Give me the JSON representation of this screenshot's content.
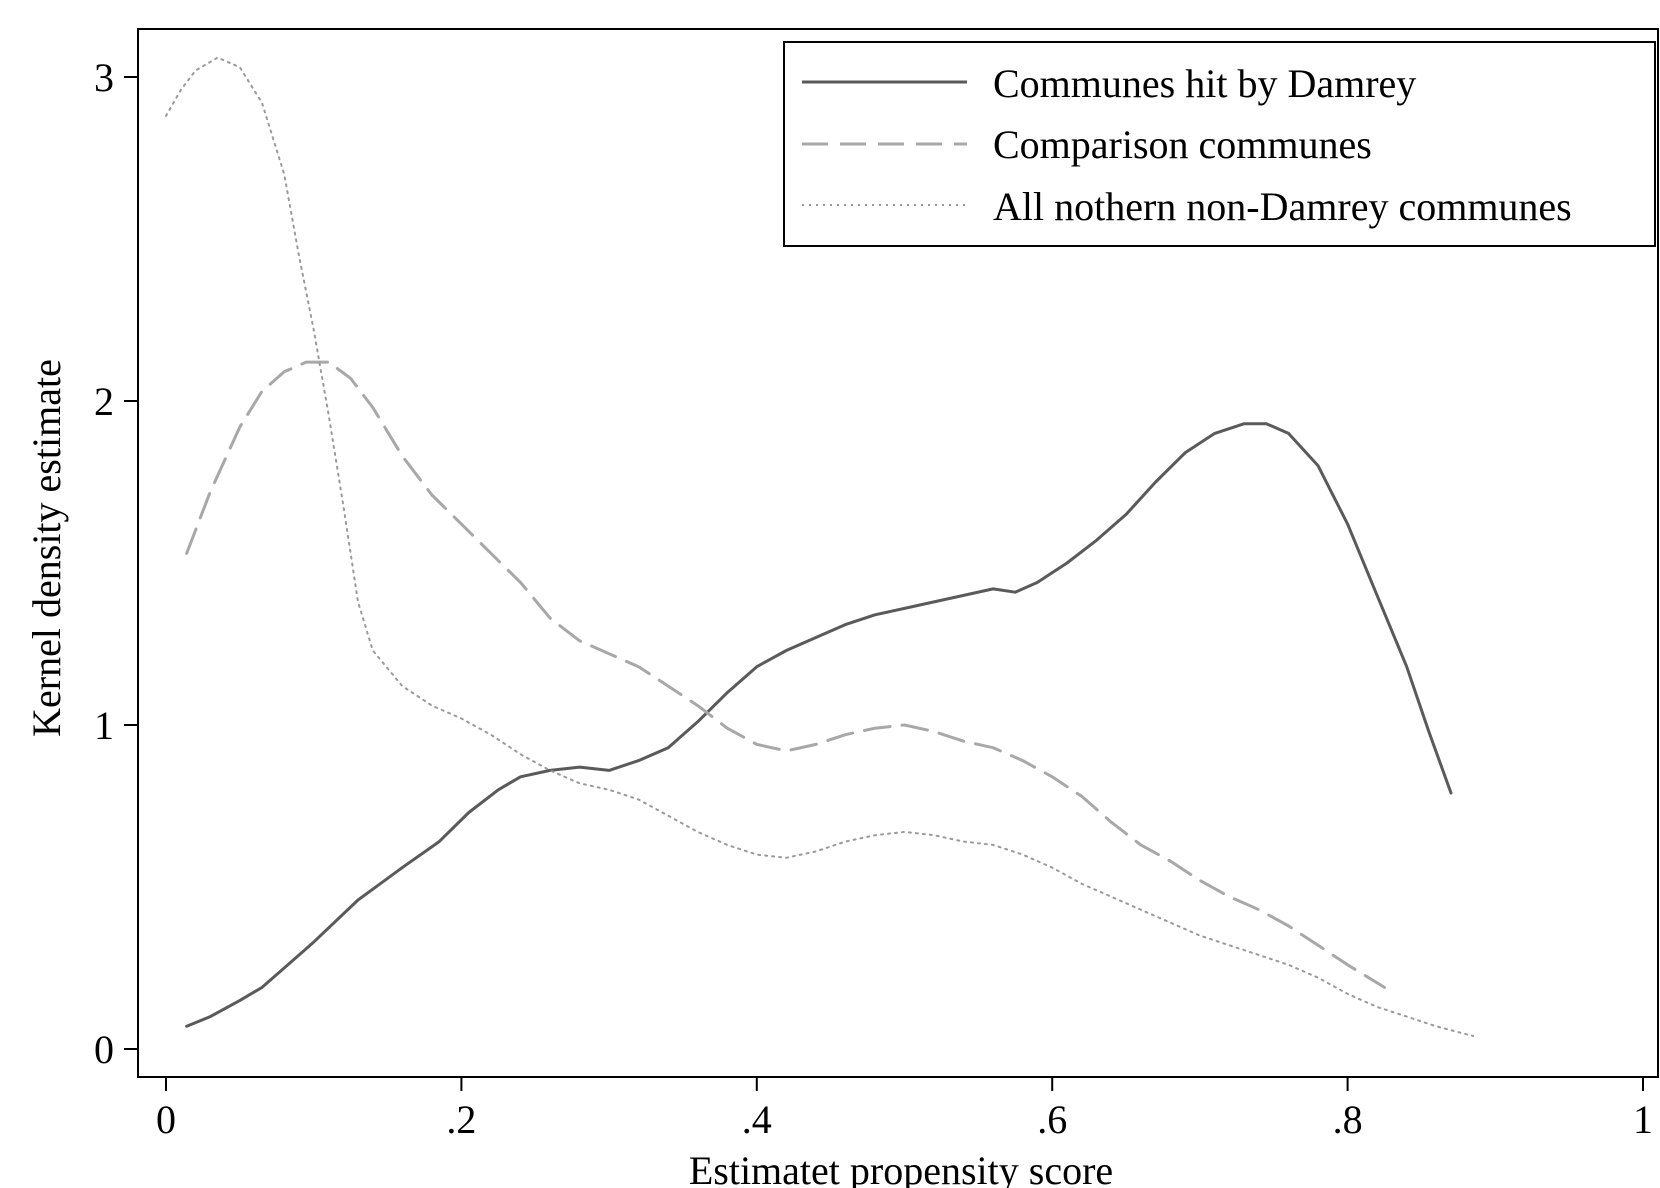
{
  "chart_data": {
    "type": "line",
    "xlabel": "Estimatet propensity score",
    "ylabel": "Kernel density estimate",
    "xlim": [
      0,
      1
    ],
    "ylim": [
      -0.08,
      3.16
    ],
    "x_ticks": [
      {
        "value": 0,
        "label": "0"
      },
      {
        "value": 0.2,
        "label": ".2"
      },
      {
        "value": 0.4,
        "label": ".4"
      },
      {
        "value": 0.6,
        "label": ".6"
      },
      {
        "value": 0.8,
        "label": ".8"
      },
      {
        "value": 1,
        "label": "1"
      }
    ],
    "y_ticks": [
      {
        "value": 0,
        "label": "0"
      },
      {
        "value": 1,
        "label": "1"
      },
      {
        "value": 2,
        "label": "2"
      },
      {
        "value": 3,
        "label": "3"
      }
    ],
    "grid": false,
    "legend_position": "top-right",
    "series": [
      {
        "name": "Communes hit by Damrey",
        "style": "solid",
        "color": "#5a5a5a",
        "points": [
          [
            0.014,
            0.07
          ],
          [
            0.03,
            0.1
          ],
          [
            0.05,
            0.15
          ],
          [
            0.065,
            0.19
          ],
          [
            0.08,
            0.25
          ],
          [
            0.1,
            0.33
          ],
          [
            0.13,
            0.46
          ],
          [
            0.16,
            0.56
          ],
          [
            0.185,
            0.64
          ],
          [
            0.205,
            0.73
          ],
          [
            0.225,
            0.8
          ],
          [
            0.24,
            0.84
          ],
          [
            0.26,
            0.86
          ],
          [
            0.28,
            0.87
          ],
          [
            0.3,
            0.86
          ],
          [
            0.32,
            0.89
          ],
          [
            0.34,
            0.93
          ],
          [
            0.36,
            1.01
          ],
          [
            0.38,
            1.1
          ],
          [
            0.4,
            1.18
          ],
          [
            0.42,
            1.23
          ],
          [
            0.44,
            1.27
          ],
          [
            0.46,
            1.31
          ],
          [
            0.48,
            1.34
          ],
          [
            0.5,
            1.36
          ],
          [
            0.52,
            1.38
          ],
          [
            0.54,
            1.4
          ],
          [
            0.56,
            1.42
          ],
          [
            0.575,
            1.41
          ],
          [
            0.59,
            1.44
          ],
          [
            0.61,
            1.5
          ],
          [
            0.63,
            1.57
          ],
          [
            0.65,
            1.65
          ],
          [
            0.67,
            1.75
          ],
          [
            0.69,
            1.84
          ],
          [
            0.71,
            1.9
          ],
          [
            0.73,
            1.93
          ],
          [
            0.745,
            1.93
          ],
          [
            0.76,
            1.9
          ],
          [
            0.78,
            1.8
          ],
          [
            0.8,
            1.62
          ],
          [
            0.82,
            1.4
          ],
          [
            0.84,
            1.18
          ],
          [
            0.855,
            0.98
          ],
          [
            0.87,
            0.79
          ]
        ]
      },
      {
        "name": "Comparison communes",
        "style": "dashed",
        "color": "#a8a8a8",
        "points": [
          [
            0.014,
            1.53
          ],
          [
            0.03,
            1.72
          ],
          [
            0.05,
            1.92
          ],
          [
            0.065,
            2.03
          ],
          [
            0.08,
            2.09
          ],
          [
            0.095,
            2.12
          ],
          [
            0.11,
            2.12
          ],
          [
            0.125,
            2.07
          ],
          [
            0.14,
            1.98
          ],
          [
            0.16,
            1.83
          ],
          [
            0.18,
            1.71
          ],
          [
            0.2,
            1.62
          ],
          [
            0.22,
            1.53
          ],
          [
            0.24,
            1.44
          ],
          [
            0.26,
            1.33
          ],
          [
            0.28,
            1.26
          ],
          [
            0.3,
            1.22
          ],
          [
            0.32,
            1.18
          ],
          [
            0.34,
            1.12
          ],
          [
            0.36,
            1.06
          ],
          [
            0.38,
            0.99
          ],
          [
            0.4,
            0.94
          ],
          [
            0.42,
            0.92
          ],
          [
            0.44,
            0.94
          ],
          [
            0.46,
            0.97
          ],
          [
            0.48,
            0.99
          ],
          [
            0.5,
            1.0
          ],
          [
            0.52,
            0.98
          ],
          [
            0.54,
            0.95
          ],
          [
            0.56,
            0.93
          ],
          [
            0.58,
            0.89
          ],
          [
            0.6,
            0.84
          ],
          [
            0.62,
            0.78
          ],
          [
            0.64,
            0.7
          ],
          [
            0.66,
            0.63
          ],
          [
            0.68,
            0.58
          ],
          [
            0.7,
            0.52
          ],
          [
            0.72,
            0.47
          ],
          [
            0.74,
            0.43
          ],
          [
            0.76,
            0.38
          ],
          [
            0.78,
            0.32
          ],
          [
            0.8,
            0.26
          ],
          [
            0.825,
            0.19
          ]
        ]
      },
      {
        "name": "All nothern non-Damrey communes",
        "style": "dotted",
        "color": "#9a9a9a",
        "points": [
          [
            0.0,
            2.88
          ],
          [
            0.01,
            2.96
          ],
          [
            0.02,
            3.02
          ],
          [
            0.035,
            3.06
          ],
          [
            0.05,
            3.03
          ],
          [
            0.065,
            2.92
          ],
          [
            0.08,
            2.7
          ],
          [
            0.09,
            2.45
          ],
          [
            0.1,
            2.22
          ],
          [
            0.11,
            1.96
          ],
          [
            0.12,
            1.68
          ],
          [
            0.13,
            1.38
          ],
          [
            0.14,
            1.23
          ],
          [
            0.16,
            1.12
          ],
          [
            0.18,
            1.06
          ],
          [
            0.2,
            1.02
          ],
          [
            0.22,
            0.97
          ],
          [
            0.24,
            0.91
          ],
          [
            0.26,
            0.86
          ],
          [
            0.28,
            0.82
          ],
          [
            0.3,
            0.8
          ],
          [
            0.32,
            0.77
          ],
          [
            0.34,
            0.72
          ],
          [
            0.36,
            0.67
          ],
          [
            0.38,
            0.63
          ],
          [
            0.4,
            0.6
          ],
          [
            0.42,
            0.59
          ],
          [
            0.44,
            0.61
          ],
          [
            0.46,
            0.64
          ],
          [
            0.48,
            0.66
          ],
          [
            0.5,
            0.67
          ],
          [
            0.52,
            0.66
          ],
          [
            0.54,
            0.64
          ],
          [
            0.56,
            0.63
          ],
          [
            0.58,
            0.6
          ],
          [
            0.6,
            0.56
          ],
          [
            0.62,
            0.51
          ],
          [
            0.64,
            0.47
          ],
          [
            0.66,
            0.43
          ],
          [
            0.68,
            0.39
          ],
          [
            0.7,
            0.35
          ],
          [
            0.72,
            0.32
          ],
          [
            0.74,
            0.29
          ],
          [
            0.76,
            0.26
          ],
          [
            0.78,
            0.22
          ],
          [
            0.8,
            0.17
          ],
          [
            0.82,
            0.13
          ],
          [
            0.84,
            0.1
          ],
          [
            0.86,
            0.07
          ],
          [
            0.885,
            0.04
          ]
        ]
      }
    ]
  }
}
